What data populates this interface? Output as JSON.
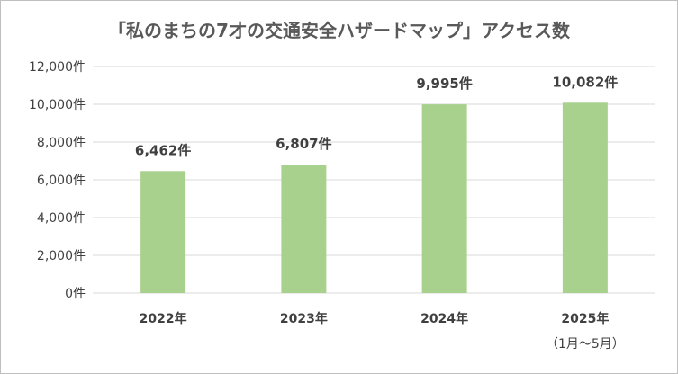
{
  "chart_data": {
    "type": "bar",
    "title": "「私のまちの7才の交通安全ハザードマップ」アクセス数",
    "categories": [
      "2022年",
      "2023年",
      "2024年",
      "2025年"
    ],
    "category_sublabels": [
      "",
      "",
      "",
      "（1月～5月）"
    ],
    "values": [
      6462,
      6807,
      9995,
      10082
    ],
    "data_labels": [
      "6,462件",
      "6,807件",
      "9,995件",
      "10,082件"
    ],
    "y_ticks": [
      0,
      2000,
      4000,
      6000,
      8000,
      10000,
      12000
    ],
    "y_tick_labels": [
      "0件",
      "2,000件",
      "4,000件",
      "6,000件",
      "8,000件",
      "10,000件",
      "12,000件"
    ],
    "ylim": [
      0,
      12000
    ],
    "xlabel": "",
    "ylabel": "",
    "grid": true,
    "legend": "none",
    "bar_color": "#a9d18e",
    "grid_color": "#d9d9d9"
  }
}
